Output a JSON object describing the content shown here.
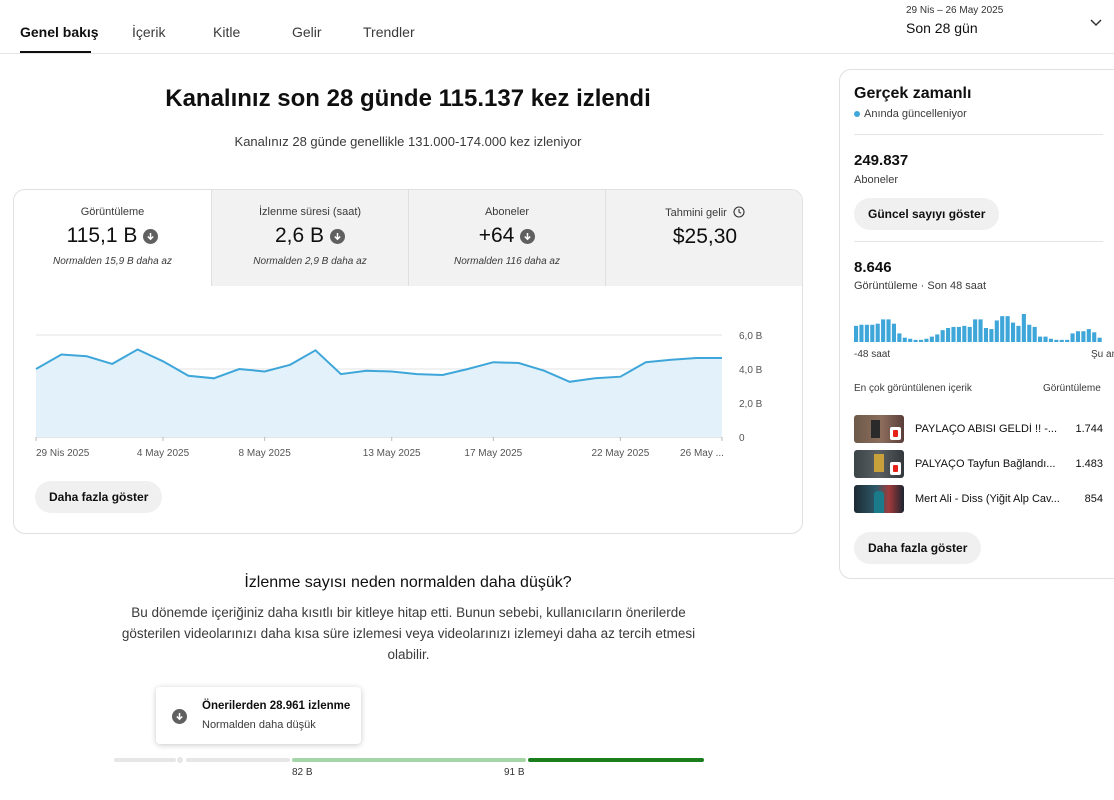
{
  "tabs": [
    {
      "label": "Genel bakış",
      "active": true
    },
    {
      "label": "İçerik"
    },
    {
      "label": "Kitle"
    },
    {
      "label": "Gelir"
    },
    {
      "label": "Trendler"
    }
  ],
  "date_range": {
    "dates": "29 Nis – 26 May 2025",
    "label": "Son 28 gün"
  },
  "headline": "Kanalınız son 28 günde 115.137 kez izlendi",
  "subline": "Kanalınız 28 günde genellikle 131.000-174.000 kez izleniyor",
  "metrics": [
    {
      "label": "Görüntüleme",
      "value": "115,1 B",
      "note": "Normalden 15,9 B daha az"
    },
    {
      "label": "İzlenme süresi (saat)",
      "value": "2,6 B",
      "note": "Normalden 2,9 B daha az"
    },
    {
      "label": "Aboneler",
      "value": "+64",
      "note": "Normalden 116 daha az"
    },
    {
      "label": "Tahmini gelir",
      "value": "$25,30",
      "note": ""
    }
  ],
  "chart_data": {
    "type": "area",
    "y_ticks": [
      "0",
      "2,0 B",
      "4,0 B",
      "6,0 B"
    ],
    "ylim": [
      0,
      6000
    ],
    "x_labels": [
      {
        "label": "29 Nis 2025",
        "day": 0
      },
      {
        "label": "4 May 2025",
        "day": 5
      },
      {
        "label": "8 May 2025",
        "day": 9
      },
      {
        "label": "13 May 2025",
        "day": 14
      },
      {
        "label": "17 May 2025",
        "day": 18
      },
      {
        "label": "22 May 2025",
        "day": 23
      },
      {
        "label": "26 May ...",
        "day": 27
      }
    ],
    "values": [
      4000,
      4850,
      4750,
      4300,
      5150,
      4450,
      3600,
      3450,
      4000,
      3850,
      4250,
      5100,
      3700,
      3900,
      3850,
      3700,
      3650,
      4000,
      4400,
      4350,
      3900,
      3250,
      3450,
      3550,
      4400,
      4550,
      4650,
      4650
    ]
  },
  "more_label": "Daha fazla göster",
  "why": {
    "title": "İzlenme sayısı neden normalden daha düşük?",
    "body": "Bu dönemde içeriğiniz daha kısıtlı bir kitleye hitap etti. Bunun sebebi, kullanıcıların önerilerde gösterilen videolarınızı daha kısa süre izlemesi veya videolarınızı izlemeyi daha az tercih etmesi olabilir.",
    "tooltip_title": "Önerilerden 28.961 izlenme",
    "tooltip_sub": "Normalden daha düşük",
    "ticks": [
      "82 B",
      "91 B"
    ]
  },
  "realtime": {
    "title": "Gerçek zamanlı",
    "live": "Anında güncelleniyor",
    "subs_value": "249.837",
    "subs_label": "Aboneler",
    "show_count": "Güncel sayıyı göster",
    "views_value": "8.646",
    "views_label": "Görüntüleme · Son 48 saat",
    "axis_start": "-48 saat",
    "axis_end": "Şu an",
    "bars": [
      15,
      16,
      16,
      16,
      17,
      21,
      21,
      17,
      8,
      4,
      3,
      2,
      2,
      3,
      5,
      7,
      11,
      13,
      14,
      14,
      15,
      14,
      21,
      21,
      13,
      12,
      20,
      24,
      24,
      18,
      15,
      26,
      16,
      14,
      5,
      5,
      3,
      2,
      2,
      2,
      8,
      10,
      10,
      12,
      9,
      4
    ],
    "top_label": "En çok görüntülenen içerik",
    "top_col": "Görüntüleme",
    "top_items": [
      {
        "title": "PAYLAÇO ABISI GELDİ !! -...",
        "count": "1.744"
      },
      {
        "title": "PALYAÇO Tayfun Bağlandı...",
        "count": "1.483"
      },
      {
        "title": "Mert Ali - Diss (Yiğit Alp Cav...",
        "count": "854"
      }
    ],
    "more_label": "Daha fazla göster"
  }
}
